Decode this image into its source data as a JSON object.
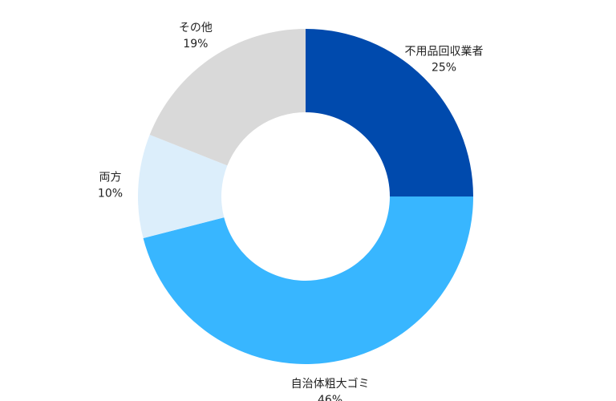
{
  "chart_data": {
    "type": "pie",
    "variant": "donut",
    "title": "",
    "start_angle_deg": 0,
    "direction": "clockwise",
    "slices": [
      {
        "label": "不用品回収業者",
        "value": 25,
        "value_label": "25%",
        "color": "#004AAD"
      },
      {
        "label": "自治体粗大ゴミ",
        "value": 46,
        "value_label": "46%",
        "color": "#38B6FF"
      },
      {
        "label": "両方",
        "value": 10,
        "value_label": "10%",
        "color": "#DCEEFB"
      },
      {
        "label": "その他",
        "value": 19,
        "value_label": "19%",
        "color": "#D9D9D9"
      }
    ]
  }
}
